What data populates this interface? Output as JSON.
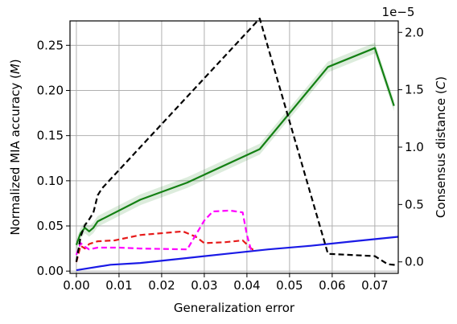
{
  "chart_data": {
    "type": "line",
    "xlabel": "Generalization error",
    "ylabel_left": "Normalized MIA accuracy (M)",
    "ylabel_left_main": "Normalized MIA accuracy (",
    "ylabel_left_symbol": "M",
    "ylabel_left_close": ")",
    "ylabel_right": "Consensus distance (C)",
    "ylabel_right_main": "Consensus distance (",
    "ylabel_right_symbol": "C",
    "ylabel_right_close": ")",
    "right_axis_offset_text": "1e−5",
    "xlim": [
      -0.0015,
      0.0755
    ],
    "ylim_left": [
      -0.0025,
      0.277
    ],
    "ylim_right": [
      -0.1,
      2.1
    ],
    "x_ticks": [
      0.0,
      0.01,
      0.02,
      0.03,
      0.04,
      0.05,
      0.06,
      0.07
    ],
    "x_tick_labels": [
      "0.00",
      "0.01",
      "0.02",
      "0.03",
      "0.04",
      "0.05",
      "0.06",
      "0.07"
    ],
    "y_left_ticks": [
      0.0,
      0.05,
      0.1,
      0.15,
      0.2,
      0.25
    ],
    "y_left_tick_labels": [
      "0.00",
      "0.05",
      "0.10",
      "0.15",
      "0.20",
      "0.25"
    ],
    "y_right_ticks": [
      0.0,
      0.5,
      1.0,
      1.5,
      2.0
    ],
    "y_right_tick_labels": [
      "0.0",
      "0.5",
      "1.0",
      "1.5",
      "2.0"
    ],
    "grid": true,
    "series": [
      {
        "axis": "left",
        "color": "#1a1ae6",
        "style": "solid",
        "x": [
          0.0,
          0.008,
          0.015,
          0.025,
          0.035,
          0.045,
          0.055,
          0.065,
          0.0755
        ],
        "y": [
          0.001,
          0.007,
          0.009,
          0.014,
          0.019,
          0.024,
          0.028,
          0.033,
          0.038
        ]
      },
      {
        "axis": "left",
        "color": "#138013",
        "style": "solid",
        "band": 0.006,
        "x": [
          0.0,
          0.001,
          0.002,
          0.003,
          0.004,
          0.005,
          0.015,
          0.026,
          0.043,
          0.059,
          0.07,
          0.0745
        ],
        "y": [
          0.029,
          0.042,
          0.048,
          0.044,
          0.048,
          0.055,
          0.079,
          0.098,
          0.135,
          0.226,
          0.247,
          0.183
        ]
      },
      {
        "axis": "left",
        "color": "#e61a1a",
        "style": "dashed",
        "x": [
          0.0,
          0.001,
          0.002,
          0.003,
          0.005,
          0.009,
          0.015,
          0.025,
          0.028,
          0.03,
          0.035,
          0.039,
          0.041,
          0.042
        ],
        "y": [
          0.01,
          0.028,
          0.025,
          0.03,
          0.033,
          0.034,
          0.04,
          0.044,
          0.038,
          0.031,
          0.032,
          0.034,
          0.025,
          0.022
        ]
      },
      {
        "axis": "left",
        "color": "#ff00ff",
        "style": "dashed",
        "x": [
          0.0,
          0.001,
          0.002,
          0.003,
          0.005,
          0.01,
          0.015,
          0.026,
          0.03,
          0.032,
          0.036,
          0.039,
          0.04,
          0.041
        ],
        "y": [
          0.018,
          0.031,
          0.027,
          0.024,
          0.026,
          0.026,
          0.025,
          0.024,
          0.056,
          0.066,
          0.067,
          0.065,
          0.04,
          0.023
        ]
      },
      {
        "axis": "right",
        "color": "#000000",
        "style": "dashed",
        "x": [
          0.0,
          0.001,
          0.002,
          0.003,
          0.004,
          0.005,
          0.006,
          0.043,
          0.059,
          0.07,
          0.073,
          0.0755
        ],
        "y": [
          0.0,
          0.22,
          0.32,
          0.37,
          0.43,
          0.58,
          0.64,
          2.12,
          0.07,
          0.05,
          -0.02,
          -0.03
        ]
      }
    ]
  }
}
